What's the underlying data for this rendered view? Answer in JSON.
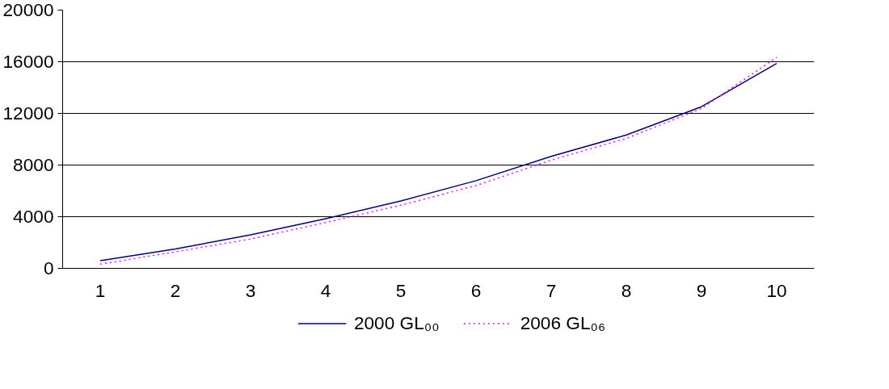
{
  "chart_data": {
    "type": "line",
    "categories": [
      "1",
      "2",
      "3",
      "4",
      "5",
      "6",
      "7",
      "8",
      "9",
      "10"
    ],
    "series": [
      {
        "name": "2000 GL₀₀",
        "color": "#000080",
        "line_style": "solid",
        "values": [
          590,
          1500,
          2590,
          3850,
          5220,
          6790,
          8670,
          10330,
          12520,
          15870
        ]
      },
      {
        "name": "2006 GL₀₆",
        "color": "#ff00ff",
        "line_style": "dotted",
        "values": [
          320,
          1280,
          2270,
          3550,
          4890,
          6410,
          8380,
          10060,
          12380,
          16340
        ]
      }
    ],
    "ylim": [
      0,
      20000
    ],
    "yticks": [
      0,
      4000,
      8000,
      12000,
      16000,
      20000
    ],
    "grid": "y",
    "legend": "bottom",
    "marker": "none"
  }
}
